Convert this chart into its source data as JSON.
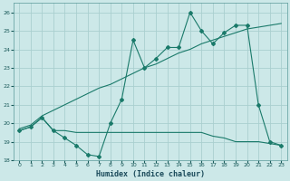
{
  "xlabel": "Humidex (Indice chaleur)",
  "bg_color": "#cce8e8",
  "grid_color": "#aacfcf",
  "line_color": "#1a7a6a",
  "xlim": [
    -0.5,
    23.5
  ],
  "ylim": [
    18,
    26.5
  ],
  "yticks": [
    18,
    19,
    20,
    21,
    22,
    23,
    24,
    25,
    26
  ],
  "xticks": [
    0,
    1,
    2,
    3,
    4,
    5,
    6,
    7,
    8,
    9,
    10,
    11,
    12,
    13,
    14,
    15,
    16,
    17,
    18,
    19,
    20,
    21,
    22,
    23
  ],
  "series1_x": [
    0,
    1,
    2,
    3,
    4,
    5,
    6,
    7,
    8,
    9,
    10,
    11,
    12,
    13,
    14,
    15,
    16,
    17,
    18,
    19,
    20,
    21,
    22,
    23
  ],
  "series1_y": [
    19.6,
    19.8,
    20.3,
    19.6,
    19.2,
    18.8,
    18.3,
    18.2,
    20.0,
    21.3,
    24.5,
    23.0,
    23.5,
    24.1,
    24.1,
    26.0,
    25.0,
    24.3,
    24.9,
    25.3,
    25.3,
    21.0,
    19.0,
    18.8
  ],
  "series2_x": [
    0,
    1,
    2,
    3,
    4,
    5,
    6,
    7,
    8,
    9,
    10,
    11,
    12,
    13,
    14,
    15,
    16,
    17,
    18,
    19,
    20,
    21,
    22,
    23
  ],
  "series2_y": [
    19.6,
    19.8,
    20.3,
    19.6,
    19.6,
    19.5,
    19.5,
    19.5,
    19.5,
    19.5,
    19.5,
    19.5,
    19.5,
    19.5,
    19.5,
    19.5,
    19.5,
    19.3,
    19.2,
    19.0,
    19.0,
    19.0,
    18.9,
    18.8
  ],
  "series3_x": [
    0,
    1,
    2,
    3,
    4,
    5,
    6,
    7,
    8,
    9,
    10,
    11,
    12,
    13,
    14,
    15,
    16,
    17,
    18,
    19,
    20,
    21,
    22,
    23
  ],
  "series3_y": [
    19.7,
    19.9,
    20.4,
    20.7,
    21.0,
    21.3,
    21.6,
    21.9,
    22.1,
    22.4,
    22.7,
    23.0,
    23.2,
    23.5,
    23.8,
    24.0,
    24.3,
    24.5,
    24.7,
    24.9,
    25.1,
    25.2,
    25.3,
    25.4
  ]
}
